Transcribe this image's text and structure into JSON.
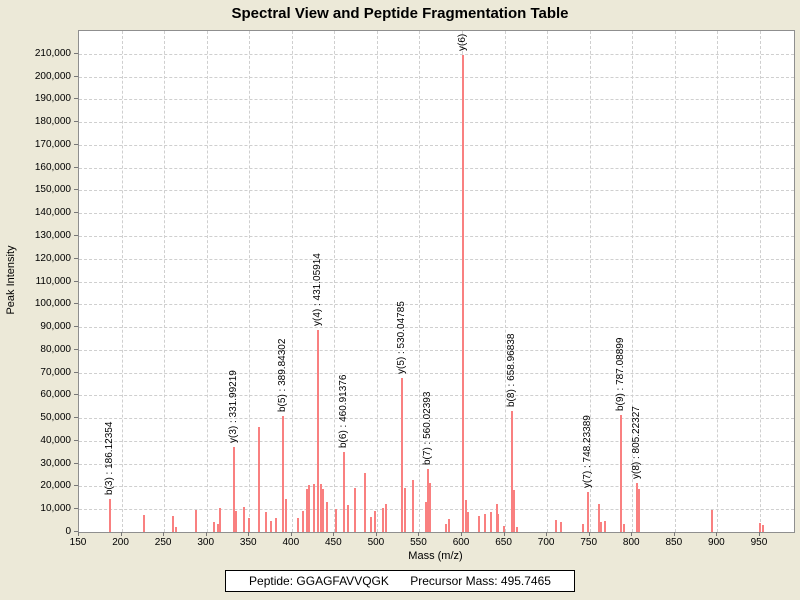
{
  "footer": {
    "peptide": "Peptide: GGAGFAVVQGK",
    "precursor": "Precursor Mass: 495.7465"
  },
  "chart_data": {
    "type": "bar",
    "title": "Spectral View and Peptide Fragmentation Table",
    "xlabel": "Mass (m/z)",
    "ylabel": "Peak Intensity",
    "xlim": [
      150,
      990
    ],
    "ylim": [
      0,
      220000
    ],
    "grid": "dashed",
    "legend": "none",
    "bar_color": "#f98080",
    "x_ticks": [
      150,
      200,
      250,
      300,
      350,
      400,
      450,
      500,
      550,
      600,
      650,
      700,
      750,
      800,
      850,
      900,
      950
    ],
    "x_tick_labels": [
      "150",
      "200",
      "250",
      "300",
      "350",
      "400",
      "450",
      "500",
      "550",
      "600",
      "650",
      "700",
      "750",
      "800",
      "850",
      "900",
      "950"
    ],
    "y_ticks": [
      0,
      10000,
      20000,
      30000,
      40000,
      50000,
      60000,
      70000,
      80000,
      90000,
      100000,
      110000,
      120000,
      130000,
      140000,
      150000,
      160000,
      170000,
      180000,
      190000,
      200000,
      210000
    ],
    "y_tick_labels": [
      "0",
      "10,000",
      "20,000",
      "30,000",
      "40,000",
      "50,000",
      "60,000",
      "70,000",
      "80,000",
      "90,000",
      "100,000",
      "110,000",
      "120,000",
      "130,000",
      "140,000",
      "150,000",
      "160,000",
      "170,000",
      "180,000",
      "190,000",
      "200,000",
      "210,000"
    ],
    "peaks": [
      {
        "mz": 186.12354,
        "i": 14500,
        "label": "b(3) : 186.12354"
      },
      {
        "mz": 226.4,
        "i": 7500
      },
      {
        "mz": 260.5,
        "i": 7000
      },
      {
        "mz": 264.0,
        "i": 2200
      },
      {
        "mz": 287.5,
        "i": 9600
      },
      {
        "mz": 308.6,
        "i": 4200
      },
      {
        "mz": 313.3,
        "i": 3600
      },
      {
        "mz": 315.7,
        "i": 10500
      },
      {
        "mz": 331.99219,
        "i": 37500,
        "label": "y(3) : 331.99219"
      },
      {
        "mz": 334.5,
        "i": 9200
      },
      {
        "mz": 344.0,
        "i": 11000
      },
      {
        "mz": 350.0,
        "i": 6000
      },
      {
        "mz": 361.5,
        "i": 46000
      },
      {
        "mz": 370.0,
        "i": 9000
      },
      {
        "mz": 375.7,
        "i": 5000
      },
      {
        "mz": 382.0,
        "i": 6200
      },
      {
        "mz": 389.84302,
        "i": 51000,
        "label": "b(5) : 389.84302"
      },
      {
        "mz": 393.5,
        "i": 14500
      },
      {
        "mz": 407.0,
        "i": 6000
      },
      {
        "mz": 413.0,
        "i": 9200
      },
      {
        "mz": 417.5,
        "i": 19000
      },
      {
        "mz": 420.5,
        "i": 20500
      },
      {
        "mz": 426.0,
        "i": 21000
      },
      {
        "mz": 431.05914,
        "i": 88500,
        "label": "y(4) : 431.05914"
      },
      {
        "mz": 434.5,
        "i": 21000
      },
      {
        "mz": 437.0,
        "i": 19000
      },
      {
        "mz": 441.0,
        "i": 13000
      },
      {
        "mz": 452.0,
        "i": 10000
      },
      {
        "mz": 460.91376,
        "i": 35000,
        "label": "b(6) : 460.91376"
      },
      {
        "mz": 466.0,
        "i": 12000
      },
      {
        "mz": 474.0,
        "i": 19500
      },
      {
        "mz": 485.5,
        "i": 26000
      },
      {
        "mz": 493.0,
        "i": 6500
      },
      {
        "mz": 498.0,
        "i": 9200
      },
      {
        "mz": 507.0,
        "i": 10500
      },
      {
        "mz": 511.0,
        "i": 12200
      },
      {
        "mz": 530.04785,
        "i": 67500,
        "label": "y(5) : 530.04785"
      },
      {
        "mz": 532.5,
        "i": 19500
      },
      {
        "mz": 542.5,
        "i": 23000
      },
      {
        "mz": 558.0,
        "i": 13000
      },
      {
        "mz": 560.02393,
        "i": 27500,
        "label": "b(7) : 560.02393"
      },
      {
        "mz": 562.5,
        "i": 21500
      },
      {
        "mz": 581.0,
        "i": 3500
      },
      {
        "mz": 585.0,
        "i": 5500
      },
      {
        "mz": 601.3,
        "i": 209500,
        "label": "y(6) :"
      },
      {
        "mz": 605.0,
        "i": 14000
      },
      {
        "mz": 607.5,
        "i": 9000
      },
      {
        "mz": 620.0,
        "i": 7200
      },
      {
        "mz": 627.5,
        "i": 8000
      },
      {
        "mz": 634.0,
        "i": 9000
      },
      {
        "mz": 640.5,
        "i": 12300
      },
      {
        "mz": 642.5,
        "i": 8000
      },
      {
        "mz": 649.5,
        "i": 2600
      },
      {
        "mz": 658.96838,
        "i": 53000,
        "label": "b(8) : 658.96838"
      },
      {
        "mz": 661.5,
        "i": 18500
      },
      {
        "mz": 665.0,
        "i": 2300
      },
      {
        "mz": 710.5,
        "i": 5300
      },
      {
        "mz": 716.0,
        "i": 4600
      },
      {
        "mz": 742.0,
        "i": 3400
      },
      {
        "mz": 748.23389,
        "i": 17500,
        "label": "y(7) : 748.23389"
      },
      {
        "mz": 761.0,
        "i": 12300
      },
      {
        "mz": 763.5,
        "i": 4500
      },
      {
        "mz": 768.0,
        "i": 5000
      },
      {
        "mz": 787.08899,
        "i": 51500,
        "label": "b(9) : 787.08899"
      },
      {
        "mz": 790.5,
        "i": 3500
      },
      {
        "mz": 805.22327,
        "i": 21500,
        "label": "y(8) : 805.22327"
      },
      {
        "mz": 807.5,
        "i": 19000
      },
      {
        "mz": 894.0,
        "i": 9500
      },
      {
        "mz": 950.5,
        "i": 4000
      },
      {
        "mz": 953.0,
        "i": 3300
      }
    ]
  }
}
